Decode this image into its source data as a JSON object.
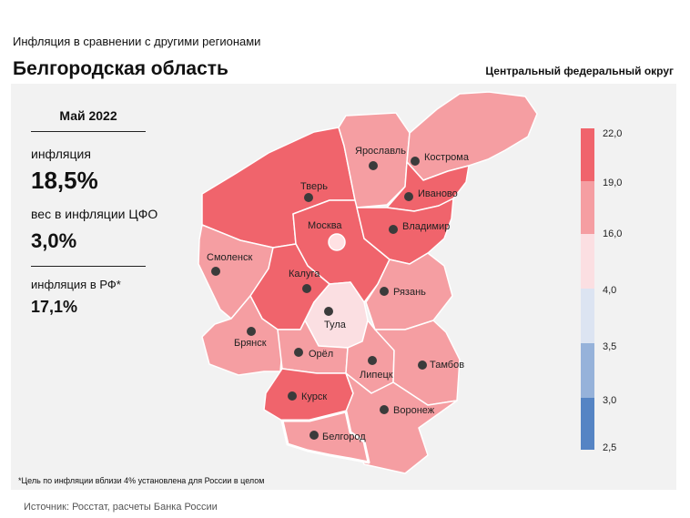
{
  "header": {
    "supertitle": "Инфляция  в сравнении  с другими  регионами",
    "title": "Белгородская область",
    "district": "Центральный федеральный округ"
  },
  "stats": {
    "period": "Май 2022",
    "inflation_label": "инфляция",
    "inflation_value": "18,5%",
    "weight_label": "вес в инфляции  ЦФО",
    "weight_value": "3,0%",
    "russia_label": "инфляция  в РФ*",
    "russia_value": "17,1%"
  },
  "footnote": "*Цель по инфляции вблизи 4% установлена для России в целом",
  "source": "Источник: Росстат, расчеты Банка России",
  "colors": {
    "bin_19_22": "#f0646c",
    "bin_16_19": "#f59ea2",
    "bin_4_16": "#fbdfe2",
    "bin_3_5_4": "#dce4f2",
    "bin_3_3_5": "#96b2da",
    "bin_2_5_3": "#5584c4",
    "highlight_border": "#ffffff",
    "background": "#f2f2f2"
  },
  "legend": {
    "ticks": [
      "22,0",
      "19,0",
      "16,0",
      "4,0",
      "3,5",
      "3,0",
      "2,5"
    ]
  },
  "regions": [
    {
      "id": "yaroslavl",
      "name": "Ярославль",
      "bin": "16-19"
    },
    {
      "id": "kostroma",
      "name": "Кострома",
      "bin": "16-19"
    },
    {
      "id": "tver",
      "name": "Тверь",
      "bin": "19-22"
    },
    {
      "id": "ivanovo",
      "name": "Иваново",
      "bin": "19-22"
    },
    {
      "id": "moskva",
      "name": "Москва",
      "bin": "19-22"
    },
    {
      "id": "vladimir",
      "name": "Владимир",
      "bin": "19-22"
    },
    {
      "id": "smolensk",
      "name": "Смоленск",
      "bin": "16-19"
    },
    {
      "id": "kaluga",
      "name": "Калуга",
      "bin": "19-22"
    },
    {
      "id": "ryazan",
      "name": "Рязань",
      "bin": "16-19"
    },
    {
      "id": "tula",
      "name": "Тула",
      "bin": "4-16"
    },
    {
      "id": "bryansk",
      "name": "Брянск",
      "bin": "16-19"
    },
    {
      "id": "orel",
      "name": "Орёл",
      "bin": "16-19"
    },
    {
      "id": "lipetsk",
      "name": "Липецк",
      "bin": "16-19"
    },
    {
      "id": "tambov",
      "name": "Тамбов",
      "bin": "16-19"
    },
    {
      "id": "kursk",
      "name": "Курск",
      "bin": "19-22"
    },
    {
      "id": "voronezh",
      "name": "Воронеж",
      "bin": "16-19"
    },
    {
      "id": "belgorod",
      "name": "Белгород",
      "bin": "16-19"
    }
  ]
}
